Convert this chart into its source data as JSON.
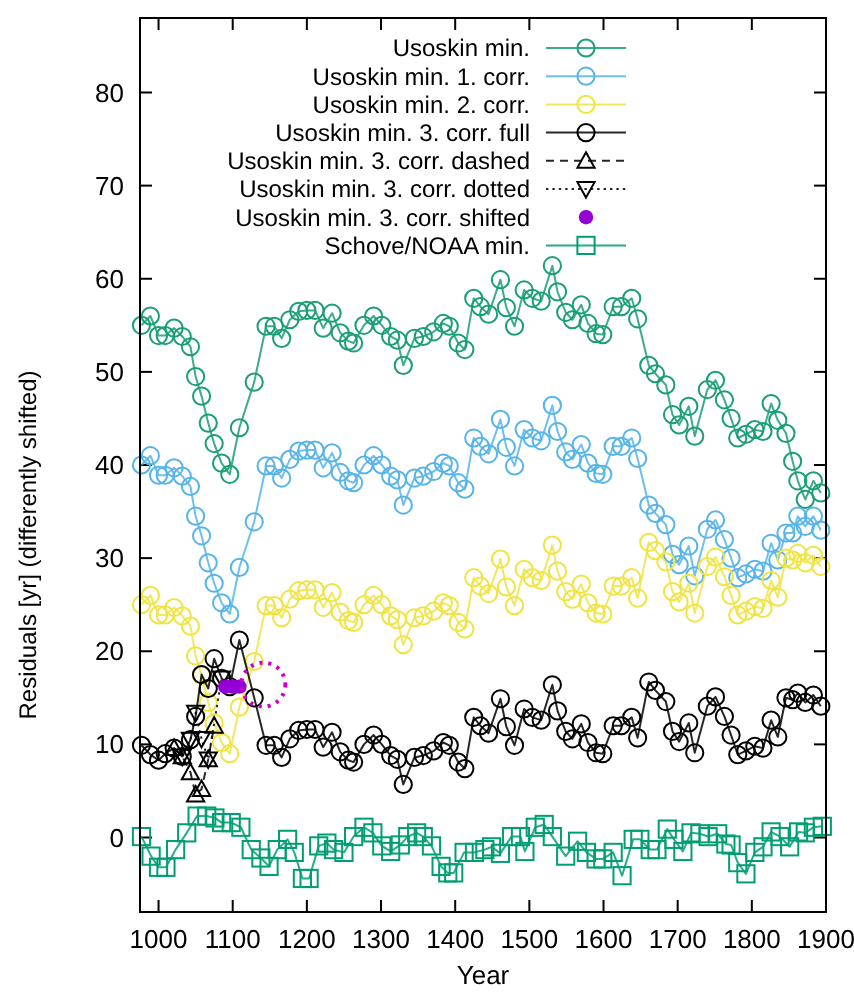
{
  "chart_data": {
    "type": "line",
    "xlabel": "Year",
    "ylabel": "Residuals [yr] (differently shifted)",
    "x": [
      977,
      989,
      1000,
      1009,
      1021,
      1032,
      1043,
      1050,
      1058,
      1067,
      1075,
      1085,
      1096,
      1109,
      1129,
      1145,
      1156,
      1166,
      1177,
      1189,
      1200,
      1211,
      1222,
      1234,
      1245,
      1256,
      1263,
      1277,
      1290,
      1301,
      1313,
      1322,
      1330,
      1345,
      1357,
      1371,
      1384,
      1392,
      1404,
      1413,
      1425,
      1434,
      1445,
      1461,
      1469,
      1480,
      1493,
      1504,
      1516,
      1531,
      1538,
      1549,
      1558,
      1570,
      1579,
      1590,
      1599,
      1613,
      1624,
      1638,
      1646,
      1661,
      1670,
      1684,
      1693,
      1702,
      1715,
      1723,
      1740,
      1751,
      1763,
      1772,
      1781,
      1792,
      1804,
      1815,
      1826,
      1835,
      1846,
      1855,
      1862,
      1872,
      1883,
      1893
    ],
    "series": [
      {
        "name": "Usoskin min.",
        "color": "#1a9e77",
        "marker": "circle",
        "line_style": "solid",
        "values": [
          55.0,
          56.0,
          53.9,
          53.9,
          54.7,
          53.8,
          52.7,
          49.5,
          47.4,
          44.5,
          42.3,
          40.2,
          39.0,
          44.0,
          48.9,
          54.9,
          54.9,
          53.6,
          55.6,
          56.5,
          56.6,
          56.6,
          54.7,
          56.3,
          54.2,
          53.3,
          53.1,
          55.0,
          56.0,
          55.0,
          53.8,
          53.4,
          50.7,
          53.6,
          53.8,
          54.3,
          55.2,
          54.9,
          53.1,
          52.4,
          57.9,
          57.0,
          56.2,
          59.9,
          56.9,
          54.9,
          58.8,
          57.9,
          57.6,
          61.4,
          58.6,
          56.4,
          55.6,
          57.2,
          55.2,
          54.1,
          54.0,
          57.0,
          57.0,
          57.9,
          55.7,
          50.7,
          49.8,
          48.6,
          45.4,
          44.3,
          46.3,
          43.1,
          48.1,
          49.1,
          47.0,
          45.0,
          42.9,
          43.3,
          43.8,
          43.6,
          46.6,
          44.8,
          43.4,
          40.4,
          38.3,
          36.3,
          38.3,
          37.0
        ]
      },
      {
        "name": "Usoskin min. 1. corr.",
        "color": "#56b4e9",
        "marker": "circle",
        "line_style": "solid",
        "values": [
          40.0,
          41.0,
          38.9,
          38.9,
          39.7,
          38.8,
          37.7,
          34.5,
          32.4,
          29.5,
          27.3,
          25.2,
          24.0,
          29.0,
          33.9,
          39.9,
          39.9,
          38.6,
          40.6,
          41.5,
          41.6,
          41.6,
          39.7,
          41.3,
          39.2,
          38.3,
          38.1,
          40.0,
          41.0,
          40.0,
          38.8,
          38.4,
          35.7,
          38.6,
          38.8,
          39.3,
          40.2,
          39.9,
          38.1,
          37.4,
          42.9,
          42.0,
          41.2,
          44.9,
          41.9,
          39.9,
          43.8,
          42.9,
          42.6,
          46.4,
          43.6,
          41.4,
          40.6,
          42.2,
          40.2,
          39.1,
          39.0,
          42.0,
          42.0,
          42.9,
          40.7,
          35.7,
          34.8,
          33.6,
          30.4,
          29.3,
          31.3,
          28.1,
          33.1,
          34.1,
          32.0,
          30.0,
          27.9,
          28.3,
          28.8,
          28.6,
          31.6,
          29.8,
          32.7,
          32.7,
          34.5,
          33.4,
          34.5,
          33.0
        ]
      },
      {
        "name": "Usoskin min. 2. corr.",
        "color": "#f0e442",
        "marker": "circle",
        "line_style": "solid",
        "values": [
          25.0,
          26.0,
          23.9,
          23.9,
          24.7,
          23.8,
          22.7,
          19.5,
          17.4,
          14.5,
          12.3,
          10.2,
          9.0,
          14.0,
          18.9,
          24.9,
          24.9,
          23.6,
          25.6,
          26.5,
          26.6,
          26.6,
          24.7,
          26.3,
          24.2,
          23.3,
          23.1,
          25.0,
          26.0,
          25.0,
          23.8,
          23.4,
          20.7,
          23.6,
          23.8,
          24.3,
          25.2,
          24.9,
          23.1,
          22.4,
          27.9,
          27.0,
          26.2,
          29.9,
          26.9,
          24.9,
          28.8,
          27.9,
          27.6,
          31.4,
          28.6,
          26.4,
          25.6,
          27.2,
          25.2,
          24.1,
          24.0,
          27.0,
          27.0,
          27.9,
          25.7,
          31.7,
          30.8,
          29.6,
          26.4,
          25.3,
          27.3,
          24.1,
          29.1,
          30.1,
          28.0,
          26.0,
          23.9,
          24.3,
          24.8,
          24.6,
          27.6,
          25.8,
          30.0,
          29.8,
          30.5,
          29.5,
          30.3,
          29.1
        ]
      },
      {
        "name": "Usoskin min. 3. corr. full",
        "color": "#000000",
        "marker": "circle",
        "line_style": "solid",
        "values": [
          9.9,
          8.9,
          8.3,
          9.0,
          9.6,
          8.7,
          10.5,
          13.0,
          17.5,
          16.0,
          19.2,
          17.1,
          16.2,
          21.2,
          15.0,
          9.9,
          9.9,
          8.6,
          10.6,
          11.5,
          11.6,
          11.6,
          9.7,
          11.3,
          9.2,
          8.3,
          8.1,
          10.0,
          11.0,
          10.0,
          8.8,
          8.4,
          5.7,
          8.6,
          8.8,
          9.3,
          10.2,
          9.9,
          8.1,
          7.4,
          12.9,
          12.0,
          11.2,
          14.9,
          11.9,
          9.9,
          13.8,
          12.9,
          12.6,
          16.4,
          13.6,
          11.4,
          10.6,
          12.2,
          10.2,
          9.1,
          9.0,
          12.0,
          12.0,
          12.9,
          10.7,
          16.7,
          15.8,
          14.6,
          11.4,
          10.3,
          12.3,
          9.1,
          14.1,
          15.1,
          13.0,
          11.0,
          8.9,
          9.3,
          9.8,
          9.6,
          12.6,
          10.8,
          15.0,
          14.8,
          15.5,
          14.5,
          15.3,
          14.1
        ]
      },
      {
        "name": "Usoskin min. 3. corr. dashed",
        "color": "#000000",
        "marker": "triangle",
        "line_style": "dashed",
        "x": [
          1021,
          1032,
          1043,
          1050,
          1058,
          1067,
          1075
        ],
        "values": [
          9.6,
          8.7,
          7.0,
          4.6,
          5.2,
          8.4,
          12.0
        ]
      },
      {
        "name": "Usoskin min. 3. corr. dotted",
        "color": "#000000",
        "marker": "triangle-down",
        "line_style": "dotted",
        "x": [
          1032,
          1043,
          1050,
          1058,
          1067,
          1085
        ],
        "values": [
          8.7,
          10.5,
          13.4,
          10.6,
          8.4,
          17.1
        ]
      },
      {
        "name": "Usoskin min. 3. corr. shifted",
        "color": "#9400d3",
        "type": "scatter",
        "marker": "circle-filled",
        "x": [
          1090,
          1100,
          1109
        ],
        "values": [
          16.2,
          16.2,
          16.2
        ]
      },
      {
        "name": "Schove/NOAA min.",
        "color": "#009e73",
        "marker": "square",
        "line_style": "solid",
        "x": [
          977,
          990,
          1000,
          1010,
          1023,
          1038,
          1052,
          1065,
          1076,
          1085,
          1098,
          1111,
          1125,
          1138,
          1149,
          1160,
          1174,
          1183,
          1194,
          1203,
          1216,
          1227,
          1236,
          1250,
          1263,
          1277,
          1289,
          1301,
          1313,
          1326,
          1336,
          1348,
          1357,
          1368,
          1381,
          1390,
          1398,
          1412,
          1426,
          1440,
          1449,
          1461,
          1476,
          1488,
          1494,
          1508,
          1520,
          1531,
          1549,
          1565,
          1577,
          1590,
          1599,
          1613,
          1625,
          1640,
          1649,
          1663,
          1672,
          1686,
          1695,
          1707,
          1718,
          1730,
          1741,
          1754,
          1765,
          1772,
          1781,
          1792,
          1804,
          1815,
          1826,
          1838,
          1851,
          1863,
          1872,
          1883,
          1895
        ],
        "values": [
          0.1,
          -2.0,
          -3.2,
          -3.2,
          -1.3,
          0.5,
          2.3,
          2.3,
          2.1,
          1.6,
          1.6,
          1.1,
          -1.3,
          -2.2,
          -3.1,
          -1.3,
          -0.2,
          -1.6,
          -4.4,
          -4.4,
          -0.9,
          -0.6,
          -1.3,
          -1.6,
          0.1,
          1.1,
          0.5,
          -0.9,
          -1.5,
          -0.8,
          0.1,
          0.5,
          0.1,
          -0.9,
          -3.1,
          -3.8,
          -3.8,
          -1.6,
          -1.6,
          -1.3,
          -1.0,
          -1.7,
          0.1,
          0.1,
          -1.5,
          1.1,
          1.4,
          0.1,
          -2.0,
          -0.4,
          -1.6,
          -2.3,
          -2.3,
          -1.6,
          -4.1,
          -0.2,
          -0.2,
          -1.3,
          -1.3,
          0.9,
          -0.2,
          -1.5,
          0.5,
          0.4,
          0.1,
          0.4,
          -0.7,
          -0.8,
          -2.7,
          -3.9,
          -1.6,
          -1.0,
          0.6,
          0.1,
          -1.0,
          0.6,
          0.5,
          1.1,
          1.2
        ]
      }
    ],
    "xlim": [
      975,
      1900
    ],
    "xticks": [
      1000,
      1100,
      1200,
      1300,
      1400,
      1500,
      1600,
      1700,
      1800,
      1900
    ],
    "ylim": [
      -8,
      88
    ],
    "yticks": [
      0,
      10,
      20,
      30,
      40,
      50,
      60,
      70,
      80
    ],
    "grid": false,
    "legend": "top"
  }
}
